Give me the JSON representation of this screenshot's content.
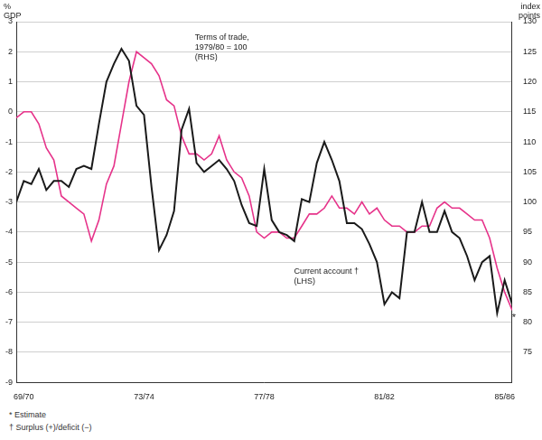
{
  "chart_data": {
    "type": "line",
    "categories": [
      null,
      "69/70",
      null,
      null,
      null,
      null,
      null,
      null,
      null,
      null,
      null,
      null,
      null,
      null,
      null,
      null,
      null,
      "73/74",
      null,
      null,
      null,
      null,
      null,
      null,
      null,
      null,
      null,
      null,
      null,
      null,
      null,
      null,
      null,
      "77/78",
      null,
      null,
      null,
      null,
      null,
      null,
      null,
      null,
      null,
      null,
      null,
      null,
      null,
      null,
      null,
      "81/82",
      null,
      null,
      null,
      null,
      null,
      null,
      null,
      null,
      null,
      null,
      null,
      null,
      null,
      null,
      null,
      "85/86",
      null
    ],
    "series": [
      {
        "name": "Current account",
        "color": "#1a1a1a",
        "axis": "y",
        "values": [
          -3.0,
          -2.3,
          -2.4,
          -1.9,
          -2.6,
          -2.3,
          -2.3,
          -2.5,
          -1.9,
          -1.8,
          -1.9,
          -0.4,
          1.0,
          1.6,
          2.1,
          1.7,
          0.2,
          -0.1,
          -2.5,
          -4.6,
          -4.1,
          -3.3,
          -0.6,
          0.1,
          -1.7,
          -2.0,
          -1.8,
          -1.6,
          -1.9,
          -2.3,
          -3.1,
          -3.7,
          -3.8,
          -1.9,
          -3.6,
          -4.0,
          -4.1,
          -4.3,
          -2.9,
          -3.0,
          -1.7,
          -1.0,
          -1.6,
          -2.3,
          -3.7,
          -3.7,
          -3.9,
          -4.4,
          -5.0,
          -6.4,
          -6.0,
          -6.2,
          -4.0,
          -4.0,
          -3.0,
          -4.0,
          -4.0,
          -3.3,
          -4.0,
          -4.2,
          -4.8,
          -5.6,
          -5.0,
          -4.8,
          -6.7,
          -5.6,
          -6.4
        ]
      },
      {
        "name": "Terms of trade",
        "color": "#e6338a",
        "axis": "y2",
        "values": [
          114,
          115,
          115,
          113,
          109,
          107,
          101,
          100,
          99,
          98,
          93.5,
          97,
          103,
          106,
          113,
          120,
          125,
          124,
          123,
          121,
          117,
          116,
          111,
          108,
          108,
          107,
          108,
          111,
          107,
          105,
          104,
          101,
          95,
          94,
          95,
          95,
          94,
          94,
          96,
          98,
          98,
          99,
          101,
          99,
          99,
          98,
          100,
          98,
          99,
          97,
          96,
          96,
          95,
          95,
          96,
          96,
          99,
          100,
          99,
          99,
          98,
          97,
          97,
          94,
          89,
          85,
          82
        ]
      }
    ],
    "ylim": [
      -9,
      3
    ],
    "yticks": [
      -9,
      -8,
      -7,
      -6,
      -5,
      -4,
      -3,
      -2,
      -1,
      0,
      1,
      2,
      3
    ],
    "y2lim": [
      70,
      130
    ],
    "y2ticks": [
      75,
      80,
      85,
      90,
      95,
      100,
      105,
      110,
      115,
      120,
      125,
      130
    ],
    "y_label": "% GDP",
    "y2_label": "index points",
    "annotations": [
      "Terms of trade,\n1979/80 = 100\n(RHS)",
      "Current account †\n(LHS)",
      "*"
    ],
    "footnotes": [
      "* Estimate",
      "† Surplus (+)/deficit (−)"
    ],
    "grid": true
  }
}
